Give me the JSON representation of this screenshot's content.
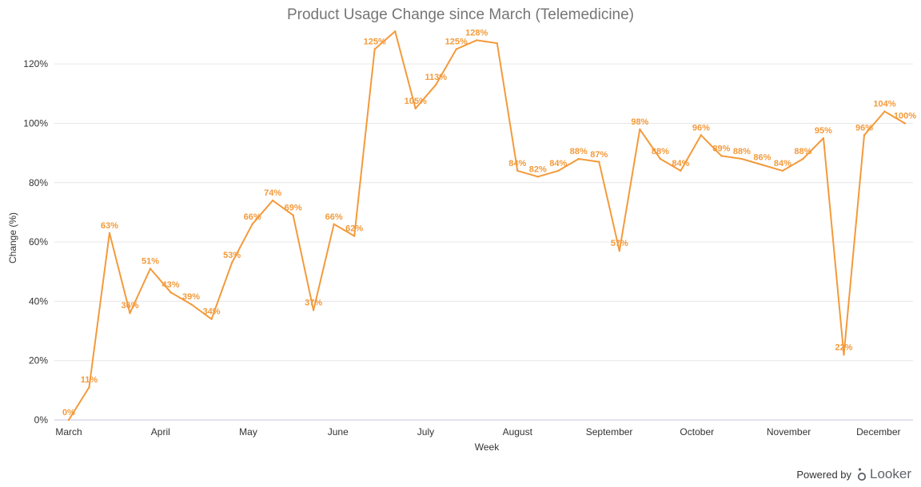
{
  "footer": {
    "powered_by": "Powered by",
    "brand": "Looker",
    "brand_icon": "looker-logo-icon"
  },
  "colors": {
    "series": "#f39a3b",
    "grid": "#e6e6e6",
    "axis": "#c7c7e6",
    "title": "#757575"
  },
  "chart_data": {
    "type": "line",
    "title": "Product Usage Change since March (Telemedicine)",
    "xlabel": "Week",
    "ylabel": "Change (%)",
    "ylim": [
      0,
      130
    ],
    "yticks": [
      0,
      20,
      40,
      60,
      80,
      100,
      120
    ],
    "ytick_labels": [
      "0%",
      "20%",
      "40%",
      "60%",
      "80%",
      "100%",
      "120%"
    ],
    "x_ticks": [
      {
        "label": "March",
        "week": 0
      },
      {
        "label": "April",
        "week": 4.5
      },
      {
        "label": "May",
        "week": 8.8
      },
      {
        "label": "June",
        "week": 13.2
      },
      {
        "label": "July",
        "week": 17.5
      },
      {
        "label": "August",
        "week": 22
      },
      {
        "label": "September",
        "week": 26.5
      },
      {
        "label": "October",
        "week": 30.8
      },
      {
        "label": "November",
        "week": 35.3
      },
      {
        "label": "December",
        "week": 39.7
      }
    ],
    "grid": true,
    "legend": "none",
    "series": [
      {
        "values": [
          0,
          11,
          63,
          36,
          51,
          43,
          39,
          34,
          53,
          66,
          74,
          69,
          37,
          66,
          62,
          125,
          131,
          105,
          113,
          125,
          128,
          127,
          84,
          82,
          84,
          88,
          87,
          57,
          98,
          88,
          84,
          96,
          89,
          88,
          86,
          84,
          88,
          95,
          22,
          96,
          104,
          100
        ],
        "labels": [
          "0%",
          "11%",
          "63%",
          "36%",
          "51%",
          "43%",
          "39%",
          "34%",
          "53%",
          "66%",
          "74%",
          "69%",
          "37%",
          "66%",
          "62%",
          "125%",
          "",
          "105%",
          "113%",
          "125%",
          "128%",
          "",
          "84%",
          "82%",
          "84%",
          "88%",
          "87%",
          "57%",
          "98%",
          "88%",
          "84%",
          "96%",
          "89%",
          "88%",
          "86%",
          "84%",
          "88%",
          "95%",
          "22%",
          "96%",
          "104%",
          "100%"
        ]
      }
    ]
  }
}
